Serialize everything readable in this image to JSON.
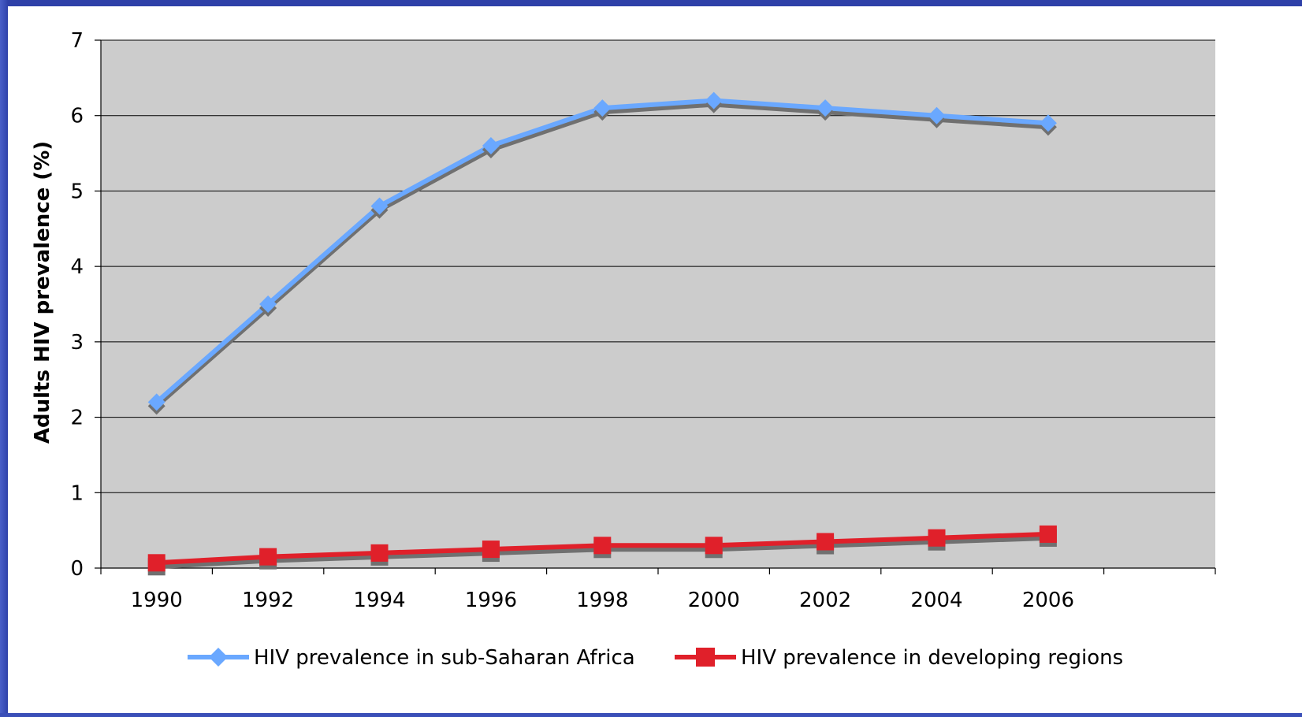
{
  "chart_data": {
    "type": "line",
    "title": "",
    "xlabel": "",
    "ylabel": "Adults HIV prevalence (%)",
    "ylim": [
      0,
      7
    ],
    "yticks": [
      "0",
      "1",
      "2",
      "3",
      "4",
      "5",
      "6",
      "7"
    ],
    "categories": [
      "1990",
      "1992",
      "1994",
      "1996",
      "1998",
      "2000",
      "2002",
      "2004",
      "2006"
    ],
    "grid": true,
    "legend_position": "bottom",
    "series": [
      {
        "name": "HIV prevalence in sub-Saharan Africa",
        "color": "#6aa8ff",
        "marker": "diamond",
        "values": [
          2.2,
          3.5,
          4.8,
          5.6,
          6.1,
          6.2,
          6.1,
          6.0,
          5.9
        ]
      },
      {
        "name": "HIV prevalence in developing regions",
        "color": "#e0202a",
        "marker": "square",
        "values": [
          0.07,
          0.15,
          0.2,
          0.25,
          0.3,
          0.3,
          0.35,
          0.4,
          0.45
        ]
      }
    ],
    "colors": {
      "plot_background": "#cccccc",
      "gridline": "#000000",
      "shadow": "#707070"
    }
  }
}
